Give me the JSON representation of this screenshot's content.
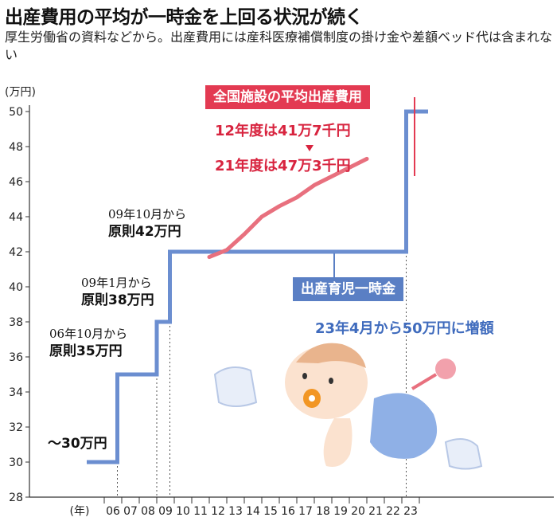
{
  "header": {
    "title": "出産費用の平均が一時金を上回る状況が続く",
    "subtitle": "厚生労働省の資料などから。出産費用には産科医療補償制度の掛け金や差額ベッド代は含まれない"
  },
  "colors": {
    "lump_sum_line": "#6b8ed0",
    "avg_cost_line": "#e8707e",
    "red_accent": "#e33a52",
    "blue_accent": "#5a7fc4"
  },
  "chart_data": {
    "type": "line",
    "title": "",
    "ylabel": "万円",
    "xlabel": "年",
    "ylim": [
      28,
      50
    ],
    "yticks": [
      "28",
      "30",
      "32",
      "34",
      "36",
      "38",
      "40",
      "42",
      "44",
      "46",
      "48",
      "50"
    ],
    "x_tick_labels": [
      "06",
      "07",
      "08",
      "09",
      "10",
      "11",
      "12",
      "13",
      "14",
      "15",
      "16",
      "17",
      "18",
      "19",
      "20",
      "21",
      "22",
      "23"
    ],
    "series": [
      {
        "name": "出産育児一時金",
        "step": true,
        "x": [
          2005.0,
          2006.75,
          2009.0,
          2009.75,
          2023.25,
          2024.5
        ],
        "y": [
          30,
          35,
          38,
          42,
          50,
          50
        ]
      },
      {
        "name": "全国施設の平均出産費用",
        "x": [
          2012,
          2013,
          2014,
          2015,
          2016,
          2017,
          2018,
          2019,
          2020,
          2021
        ],
        "y": [
          41.7,
          42.1,
          43.0,
          44.0,
          44.6,
          45.1,
          45.8,
          46.3,
          46.8,
          47.3
        ]
      }
    ],
    "annotations": {
      "a0": {
        "line2": "〜30万円"
      },
      "a1": {
        "line1": "06年10月から",
        "line2": "原則35万円"
      },
      "a2": {
        "line1": "09年1月から",
        "line2": "原則38万円"
      },
      "a3": {
        "line1": "09年10月から",
        "line2": "原則42万円"
      }
    },
    "avg_cost_box": {
      "label": "全国施設の平均出産費用",
      "line1": "12年度は41万7千円",
      "line2": "21年度は47万3千円"
    },
    "lump_sum_box": {
      "label": "出産育児一時金",
      "note": "23年4月から50万円に増額"
    }
  }
}
